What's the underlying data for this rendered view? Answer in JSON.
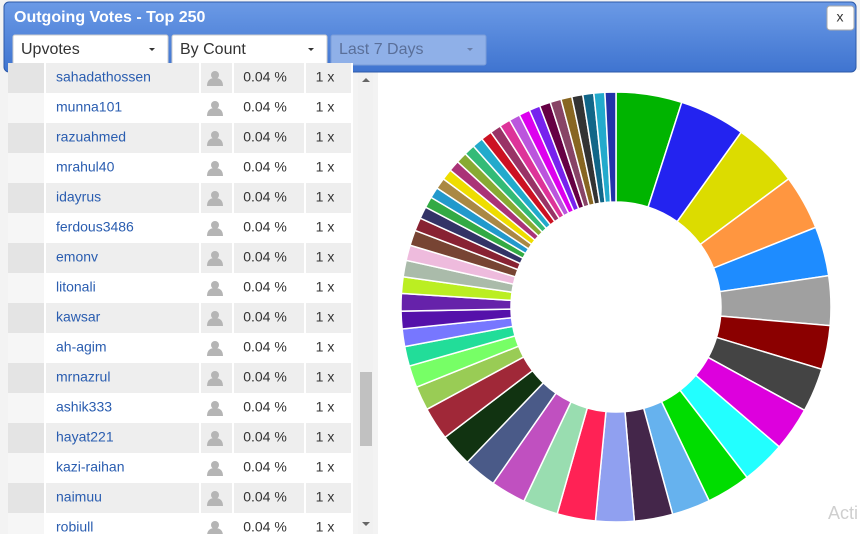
{
  "header": {
    "title": "Outgoing Votes - Top 250",
    "close": "x"
  },
  "controls": {
    "vote_type": "Upvotes",
    "sort": "By Count",
    "period": "Last 7 Days"
  },
  "table": {
    "rows": [
      [
        "sahadathossen",
        "0.04 %",
        "1 x"
      ],
      [
        "munna101",
        "0.04 %",
        "1 x"
      ],
      [
        "razuahmed",
        "0.04 %",
        "1 x"
      ],
      [
        "mrahul40",
        "0.04 %",
        "1 x"
      ],
      [
        "idayrus",
        "0.04 %",
        "1 x"
      ],
      [
        "ferdous3486",
        "0.04 %",
        "1 x"
      ],
      [
        "emonv",
        "0.04 %",
        "1 x"
      ],
      [
        "litonali",
        "0.04 %",
        "1 x"
      ],
      [
        "kawsar",
        "0.04 %",
        "1 x"
      ],
      [
        "ah-agim",
        "0.04 %",
        "1 x"
      ],
      [
        "mrnazrul",
        "0.04 %",
        "1 x"
      ],
      [
        "ashik333",
        "0.04 %",
        "1 x"
      ],
      [
        "hayat221",
        "0.04 %",
        "1 x"
      ],
      [
        "kazi-raihan",
        "0.04 %",
        "1 x"
      ],
      [
        "naimuu",
        "0.04 %",
        "1 x"
      ],
      [
        "robiull",
        "0.04 %",
        "1 x"
      ]
    ]
  },
  "chart_data": {
    "type": "donut",
    "values": [
      6,
      6,
      6,
      5,
      4.5,
      4.5,
      4,
      4,
      4,
      4,
      4,
      3.5,
      3.5,
      3.5,
      3.5,
      3.2,
      3.2,
      3,
      3,
      3,
      2.2,
      2,
      1.8,
      1.6,
      1.6,
      1.6,
      1.5,
      1.5,
      1.4,
      1.4,
      1.2,
      1.1,
      1,
      1,
      1,
      1,
      1,
      1,
      1,
      1,
      1,
      1,
      1,
      1,
      1,
      1,
      1,
      1,
      1,
      1,
      1,
      1,
      1
    ],
    "colors": [
      "#00b400",
      "#2323f0",
      "#dcdc00",
      "#ff9640",
      "#1e8cff",
      "#a0a0a0",
      "#8b0000",
      "#444444",
      "#dd00dd",
      "#22ffff",
      "#00dd00",
      "#66b2ee",
      "#44264a",
      "#90a0f0",
      "#ff2255",
      "#99ddb0",
      "#c050c0",
      "#4a5a88",
      "#113311",
      "#a02838",
      "#99cc55",
      "#77ff66",
      "#22dd99",
      "#7777ff",
      "#5511aa",
      "#6622aa",
      "#bbee22",
      "#aabbaa",
      "#eebbdd",
      "#774433",
      "#882233",
      "#333366",
      "#33aa44",
      "#2299cc",
      "#aa8844",
      "#eedd00",
      "#aa3377",
      "#88aa33",
      "#33bb77",
      "#22aacc",
      "#cc1122",
      "#993366",
      "#dd3399",
      "#bb55dd",
      "#dd00ee",
      "#7722ee",
      "#660044",
      "#884466",
      "#886622",
      "#333333",
      "#116688",
      "#22aacc",
      "#2233aa"
    ]
  },
  "watermark": "Acti"
}
